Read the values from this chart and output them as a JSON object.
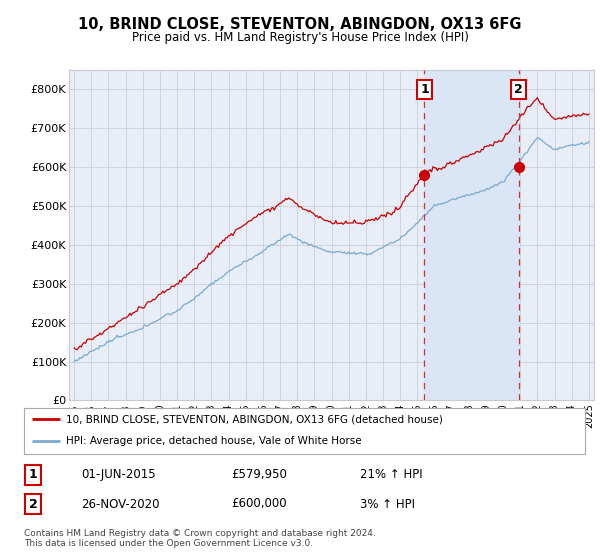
{
  "title": "10, BRIND CLOSE, STEVENTON, ABINGDON, OX13 6FG",
  "subtitle": "Price paid vs. HM Land Registry's House Price Index (HPI)",
  "legend_line1": "10, BRIND CLOSE, STEVENTON, ABINGDON, OX13 6FG (detached house)",
  "legend_line2": "HPI: Average price, detached house, Vale of White Horse",
  "footnote": "Contains HM Land Registry data © Crown copyright and database right 2024.\nThis data is licensed under the Open Government Licence v3.0.",
  "transaction1_label": "1",
  "transaction1_date": "01-JUN-2015",
  "transaction1_price": "£579,950",
  "transaction1_hpi": "21% ↑ HPI",
  "transaction2_label": "2",
  "transaction2_date": "26-NOV-2020",
  "transaction2_price": "£600,000",
  "transaction2_hpi": "3% ↑ HPI",
  "sale1_x": 2015.42,
  "sale1_y": 579950,
  "sale2_x": 2020.9,
  "sale2_y": 600000,
  "ylabel_ticks": [
    "£0",
    "£100K",
    "£200K",
    "£300K",
    "£400K",
    "£500K",
    "£600K",
    "£700K",
    "£800K"
  ],
  "ytick_values": [
    0,
    100000,
    200000,
    300000,
    400000,
    500000,
    600000,
    700000,
    800000
  ],
  "ylim": [
    0,
    850000
  ],
  "xlim_start": 1994.7,
  "xlim_end": 2025.3,
  "background_color": "#ffffff",
  "plot_bg_color": "#e8eef8",
  "grid_color": "#c8c8d0",
  "red_line_color": "#cc0000",
  "blue_line_color": "#7aaad0",
  "sale_marker_color": "#cc0000",
  "dashed_line_color": "#cc3333",
  "shade_color": "#dae6f5"
}
